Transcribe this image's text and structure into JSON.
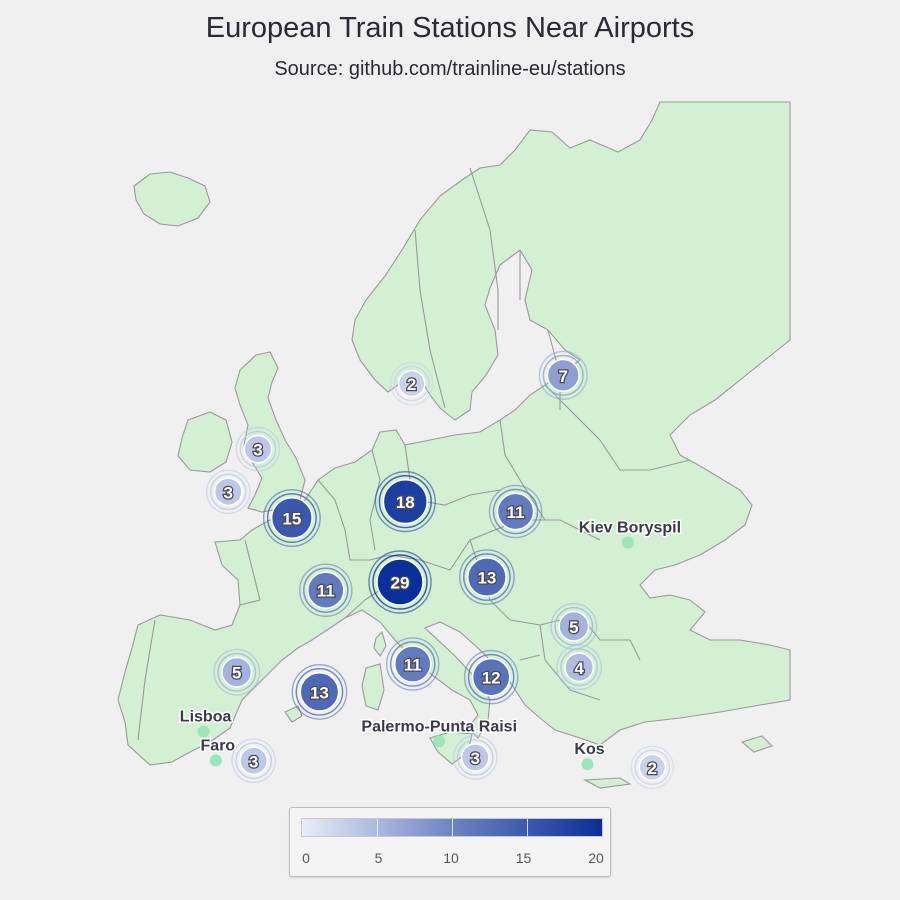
{
  "header": {
    "title": "European Train Stations Near Airports",
    "subtitle": "Source: github.com/trainline-eu/stations"
  },
  "colors": {
    "water": "#f0f0f0",
    "land": "#d3f0d3",
    "border": "#9a9a9a",
    "airport_marker": "#98e8b8",
    "scale_low": "#e8eef8",
    "scale_high": "#0a2f9a"
  },
  "chart_data": {
    "type": "map-clusters",
    "color_scale": {
      "min": 0,
      "max": 20,
      "ticks": [
        "0",
        "5",
        "10",
        "15",
        "20"
      ]
    },
    "clusters": [
      {
        "region": "southern Norway",
        "count": 2,
        "lon": 10.5,
        "lat": 60.0
      },
      {
        "region": "Finland",
        "count": 7,
        "lon": 24.8,
        "lat": 60.5
      },
      {
        "region": "Scotland",
        "count": 3,
        "lon": -4.0,
        "lat": 56.0
      },
      {
        "region": "Ireland",
        "count": 3,
        "lon": -6.8,
        "lat": 53.4
      },
      {
        "region": "England",
        "count": 15,
        "lon": -0.8,
        "lat": 51.8
      },
      {
        "region": "Northern Germany",
        "count": 18,
        "lon": 9.9,
        "lat": 52.8
      },
      {
        "region": "Poland",
        "count": 11,
        "lon": 20.3,
        "lat": 52.2
      },
      {
        "region": "France",
        "count": 11,
        "lon": 2.4,
        "lat": 47.4
      },
      {
        "region": "Southern Germany/Switzerland",
        "count": 29,
        "lon": 9.4,
        "lat": 47.9
      },
      {
        "region": "Austria/Czechia",
        "count": 13,
        "lon": 17.6,
        "lat": 48.2
      },
      {
        "region": "Romania",
        "count": 5,
        "lon": 25.8,
        "lat": 45.2
      },
      {
        "region": "Northern Spain",
        "count": 5,
        "lon": -6.0,
        "lat": 42.4
      },
      {
        "region": "Eastern Spain",
        "count": 13,
        "lon": 1.8,
        "lat": 41.2
      },
      {
        "region": "Northern Italy",
        "count": 11,
        "lon": 10.6,
        "lat": 42.9
      },
      {
        "region": "Southern Italy",
        "count": 12,
        "lon": 18.0,
        "lat": 42.1
      },
      {
        "region": "Bulgaria",
        "count": 4,
        "lon": 26.3,
        "lat": 42.7
      },
      {
        "region": "Southern Spain",
        "count": 3,
        "lon": -4.4,
        "lat": 37.0
      },
      {
        "region": "Sicily",
        "count": 3,
        "lon": 16.5,
        "lat": 37.2
      },
      {
        "region": "Cyprus",
        "count": 2,
        "lon": 33.2,
        "lat": 36.6
      }
    ],
    "airports": [
      {
        "name": "Kiev Boryspil",
        "lon": 30.9,
        "lat": 50.3
      },
      {
        "name": "Lisboa",
        "lon": -9.13,
        "lat": 38.78
      },
      {
        "name": "Faro",
        "lon": -7.97,
        "lat": 37.02
      },
      {
        "name": "Palermo-Punta Raisi",
        "lon": 13.1,
        "lat": 38.18
      },
      {
        "name": "Kos",
        "lon": 27.09,
        "lat": 36.79
      }
    ]
  }
}
